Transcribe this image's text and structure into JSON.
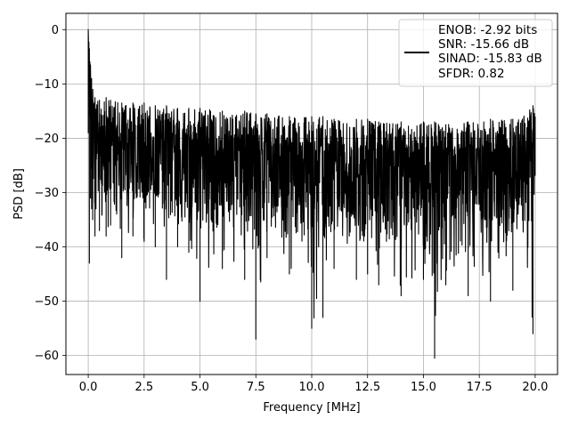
{
  "chart_data": {
    "type": "line",
    "title": "",
    "xlabel": "Frequency [MHz]",
    "ylabel": "PSD [dB]",
    "xlim": [
      -1.0,
      21.0
    ],
    "ylim": [
      -63.5,
      3.0
    ],
    "xticks": [
      0.0,
      2.5,
      5.0,
      7.5,
      10.0,
      12.5,
      15.0,
      17.5,
      20.0
    ],
    "xtick_labels": [
      "0.0",
      "2.5",
      "5.0",
      "7.5",
      "10.0",
      "12.5",
      "15.0",
      "17.5",
      "20.0"
    ],
    "yticks": [
      0,
      -10,
      -20,
      -30,
      -40,
      -50,
      -60
    ],
    "ytick_labels": [
      "0",
      "−10",
      "−20",
      "−30",
      "−40",
      "−50",
      "−60"
    ],
    "grid": true,
    "legend_position": "top-right",
    "legend_lines": [
      "ENOB: -2.92 bits",
      "SNR: -15.66 dB",
      "SINAD: -15.83 dB",
      "SFDR: 0.82"
    ],
    "line_color": "#000000",
    "series": [
      {
        "name": "ENOB: -2.92 bits",
        "x": [
          0.0,
          0.05,
          0.1,
          0.15,
          0.2,
          0.3,
          0.5,
          0.8,
          1.0,
          1.5,
          2.0,
          2.5,
          3.0,
          3.5,
          4.0,
          4.5,
          5.0,
          6.0,
          7.0,
          7.5,
          8.0,
          9.0,
          10.0,
          10.5,
          11.0,
          12.0,
          12.5,
          13.0,
          14.0,
          15.0,
          15.5,
          16.0,
          17.0,
          18.0,
          19.0,
          19.9,
          20.0
        ],
        "upper": [
          0.0,
          -3.5,
          -6.5,
          -9.0,
          -11.0,
          -12.5,
          -13.0,
          -12.5,
          -13.0,
          -13.5,
          -13.5,
          -13.5,
          -14.0,
          -14.0,
          -14.5,
          -14.5,
          -14.5,
          -15.0,
          -15.0,
          -15.5,
          -15.5,
          -16.0,
          -16.0,
          -16.0,
          -16.5,
          -16.5,
          -16.5,
          -17.0,
          -17.0,
          -17.0,
          -17.0,
          -17.5,
          -17.0,
          -16.5,
          -16.5,
          -14.0,
          -16.0
        ],
        "lower": [
          -19.0,
          -43.0,
          -31.0,
          -33.0,
          -35.0,
          -38.0,
          -37.0,
          -38.0,
          -36.0,
          -42.0,
          -38.0,
          -39.0,
          -40.0,
          -46.0,
          -40.0,
          -41.0,
          -50.0,
          -44.0,
          -46.0,
          -57.0,
          -42.0,
          -45.0,
          -55.0,
          -53.0,
          -44.0,
          -46.0,
          -45.0,
          -47.0,
          -49.0,
          -46.0,
          -60.5,
          -47.0,
          -49.0,
          -50.0,
          -48.0,
          -56.0,
          -23.0
        ],
        "center": [
          -2.0,
          -12.0,
          -16.0,
          -19.0,
          -21.0,
          -22.5,
          -23.0,
          -23.5,
          -24.0,
          -24.0,
          -24.5,
          -24.5,
          -25.0,
          -25.0,
          -25.5,
          -25.5,
          -25.5,
          -26.0,
          -26.0,
          -26.0,
          -26.5,
          -26.5,
          -26.5,
          -27.0,
          -27.0,
          -27.0,
          -27.0,
          -27.5,
          -27.5,
          -27.5,
          -27.5,
          -27.5,
          -27.5,
          -27.5,
          -27.5,
          -25.0,
          -26.0
        ]
      }
    ]
  }
}
